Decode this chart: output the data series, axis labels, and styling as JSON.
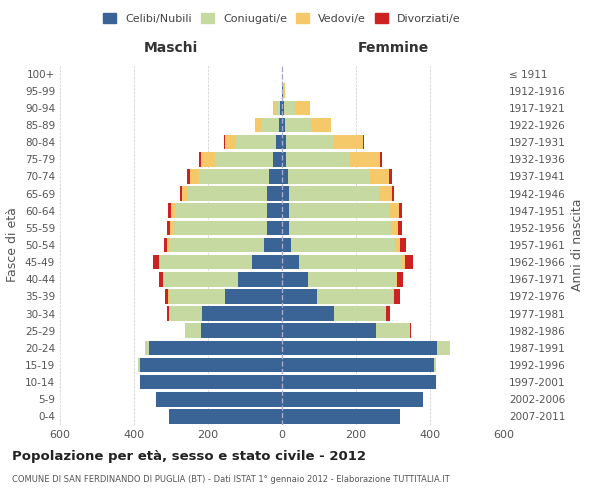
{
  "age_groups": [
    "0-4",
    "5-9",
    "10-14",
    "15-19",
    "20-24",
    "25-29",
    "30-34",
    "35-39",
    "40-44",
    "45-49",
    "50-54",
    "55-59",
    "60-64",
    "65-69",
    "70-74",
    "75-79",
    "80-84",
    "85-89",
    "90-94",
    "95-99",
    "100+"
  ],
  "birth_years": [
    "2007-2011",
    "2002-2006",
    "1997-2001",
    "1992-1996",
    "1987-1991",
    "1982-1986",
    "1977-1981",
    "1972-1976",
    "1967-1971",
    "1962-1966",
    "1957-1961",
    "1952-1956",
    "1947-1951",
    "1942-1946",
    "1937-1941",
    "1932-1936",
    "1927-1931",
    "1922-1926",
    "1917-1921",
    "1912-1916",
    "≤ 1911"
  ],
  "colors": {
    "celibi": "#3a6496",
    "coniugati": "#c5d9a0",
    "vedovi": "#f5c96a",
    "divorziati": "#cc2222"
  },
  "maschi": {
    "celibi": [
      305,
      340,
      385,
      385,
      360,
      220,
      215,
      155,
      120,
      80,
      50,
      40,
      40,
      40,
      35,
      25,
      15,
      8,
      5,
      1,
      1
    ],
    "coniugati": [
      0,
      0,
      0,
      3,
      10,
      40,
      90,
      150,
      200,
      250,
      255,
      255,
      250,
      215,
      190,
      155,
      110,
      50,
      15,
      0,
      0
    ],
    "vedovi": [
      0,
      0,
      0,
      0,
      0,
      1,
      1,
      2,
      2,
      3,
      5,
      8,
      10,
      15,
      25,
      40,
      30,
      15,
      5,
      0,
      0
    ],
    "divorziati": [
      0,
      0,
      0,
      0,
      0,
      2,
      5,
      8,
      10,
      15,
      10,
      8,
      8,
      5,
      8,
      5,
      2,
      0,
      0,
      0,
      0
    ]
  },
  "femmine": {
    "celibi": [
      320,
      380,
      415,
      410,
      420,
      255,
      140,
      95,
      70,
      45,
      25,
      20,
      20,
      18,
      15,
      10,
      10,
      8,
      5,
      2,
      1
    ],
    "coniugati": [
      0,
      0,
      0,
      5,
      35,
      90,
      140,
      205,
      235,
      280,
      280,
      275,
      270,
      245,
      220,
      175,
      130,
      70,
      30,
      2,
      0
    ],
    "vedovi": [
      0,
      0,
      0,
      0,
      0,
      1,
      2,
      3,
      5,
      8,
      15,
      18,
      25,
      35,
      55,
      80,
      80,
      55,
      40,
      5,
      0
    ],
    "divorziati": [
      0,
      0,
      0,
      0,
      0,
      3,
      10,
      15,
      18,
      20,
      15,
      10,
      8,
      5,
      8,
      5,
      2,
      0,
      0,
      0,
      0
    ]
  },
  "title": "Popolazione per età, sesso e stato civile - 2012",
  "subtitle": "COMUNE DI SAN FERDINANDO DI PUGLIA (BT) - Dati ISTAT 1° gennaio 2012 - Elaborazione TUTTITALIA.IT",
  "xlabel_left": "Maschi",
  "xlabel_right": "Femmine",
  "ylabel_left": "Fasce di età",
  "ylabel_right": "Anni di nascita",
  "xlim": 600,
  "legend_labels": [
    "Celibi/Nubili",
    "Coniugati/e",
    "Vedovi/e",
    "Divorziati/e"
  ],
  "bg_color": "#ffffff",
  "grid_color": "#cccccc"
}
